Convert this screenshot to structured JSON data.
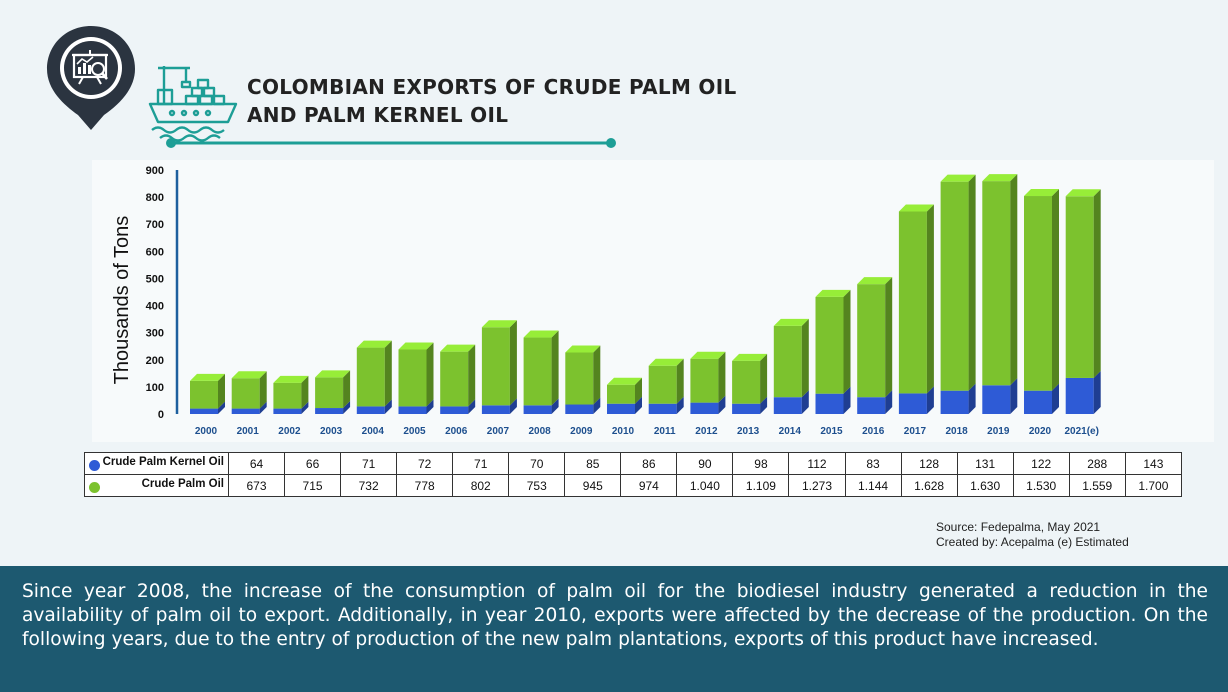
{
  "header": {
    "title_line1": "COLOMBIAN EXPORTS OF CRUDE PALM OIL",
    "title_line2": "AND PALM KERNEL OIL"
  },
  "icons": {
    "pin": "presentation-analytics-pin-icon",
    "ship": "cargo-ship-icon"
  },
  "colors": {
    "kernel": "#2e5bd6",
    "crude": "#7cc22e",
    "accent": "#1d9e96",
    "pin": "#2b3440",
    "footer": "#1d5970"
  },
  "chart_data": {
    "type": "bar",
    "stacked": true,
    "ylabel": "Thousands of Tons",
    "ylim": [
      0,
      900
    ],
    "yticks": [
      0,
      100,
      200,
      300,
      400,
      500,
      600,
      700,
      800,
      900
    ],
    "categories": [
      "2000",
      "2001",
      "2002",
      "2003",
      "2004",
      "2005",
      "2006",
      "2007",
      "2008",
      "2009",
      "2010",
      "2011",
      "2012",
      "2013",
      "2014",
      "2015",
      "2016",
      "2017",
      "2018",
      "2019",
      "2020",
      "2021(e)"
    ],
    "series": [
      {
        "name": "Crude Palm Kernel Oil",
        "color": "#2e5bd6",
        "values": [
          20,
          20,
          20,
          22,
          28,
          28,
          28,
          32,
          32,
          35,
          38,
          38,
          42,
          38,
          62,
          75,
          62,
          76,
          86,
          106,
          86,
          133
        ]
      },
      {
        "name": "Crude Palm Oil",
        "color": "#7cc22e",
        "values": [
          102,
          112,
          95,
          113,
          217,
          210,
          202,
          288,
          250,
          192,
          70,
          140,
          162,
          158,
          263,
          357,
          417,
          671,
          771,
          753,
          718,
          670
        ]
      }
    ]
  },
  "table": {
    "rows": [
      {
        "label": "Crude Palm Kernel Oil",
        "color": "#2e5bd6",
        "values": [
          "64",
          "66",
          "71",
          "72",
          "71",
          "70",
          "85",
          "86",
          "90",
          "98",
          "112",
          "83",
          "128",
          "131",
          "122",
          "288",
          "143"
        ]
      },
      {
        "label": "Crude Palm Oil",
        "color": "#7cc22e",
        "values": [
          "673",
          "715",
          "732",
          "778",
          "802",
          "753",
          "945",
          "974",
          "1.040",
          "1.109",
          "1.273",
          "1.144",
          "1.628",
          "1.630",
          "1.530",
          "1.559",
          "1.700"
        ]
      }
    ]
  },
  "source": {
    "line1": "Source: Fedepalma, May 2021",
    "line2": "Created by: Acepalma (e) Estimated"
  },
  "footer": {
    "text": "Since year 2008, the increase of the consumption of palm oil for the biodiesel industry generated a reduction in the availability of palm oil to export. Additionally, in year 2010, exports were affected by the decrease of the production. On the following years, due to the entry of production of the new palm plantations, exports of this product have increased."
  }
}
